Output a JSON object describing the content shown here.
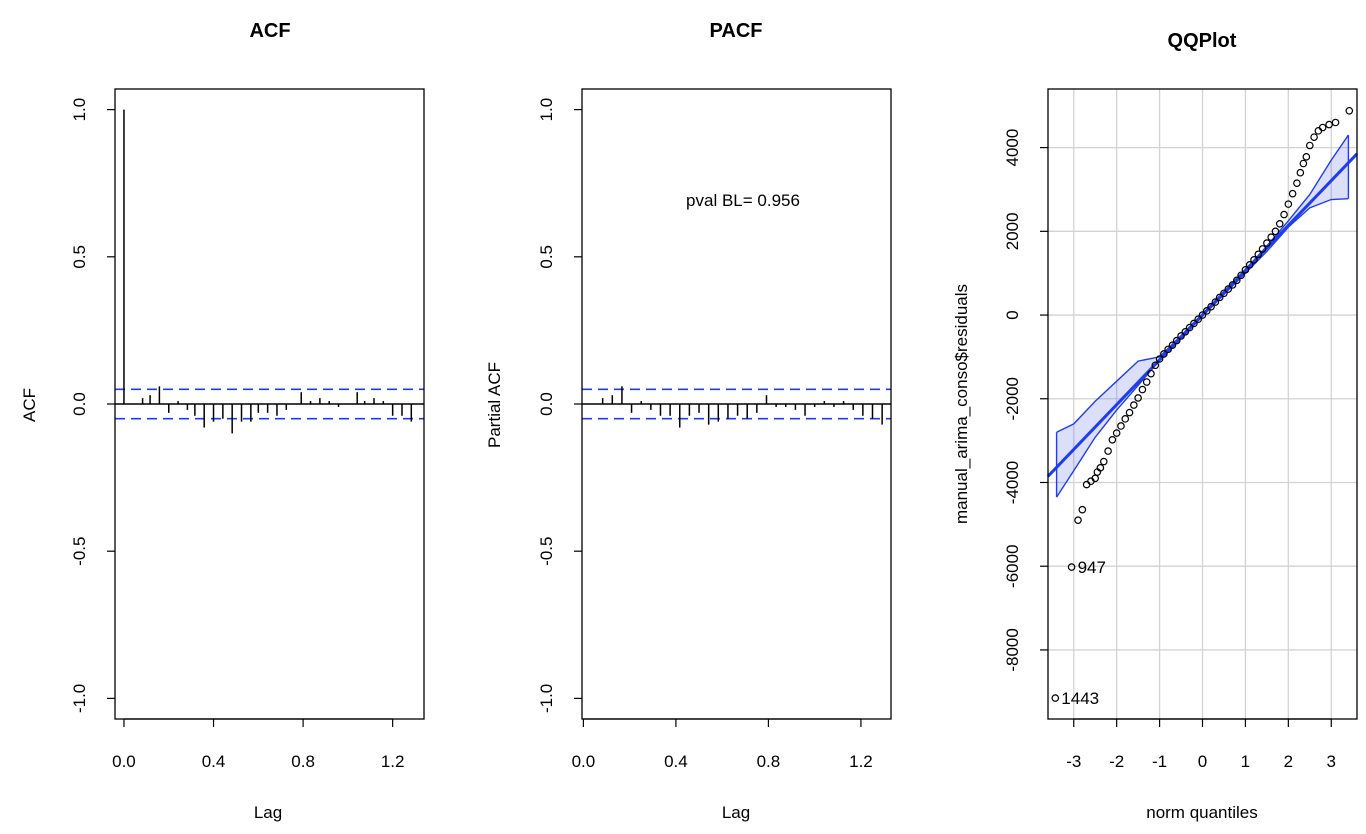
{
  "acf": {
    "chart_data": {
      "type": "bar",
      "title": "ACF",
      "xlabel": "Lag",
      "ylabel": "ACF",
      "xlim": [
        -0.04,
        1.34
      ],
      "ylim": [
        -1.07,
        1.07
      ],
      "x_ticks": [
        0.0,
        0.4,
        0.8,
        1.2
      ],
      "x_tick_labels": [
        "0.0",
        "0.4",
        "0.8",
        "1.2"
      ],
      "y_ticks": [
        1.0,
        0.5,
        0.0,
        -0.5,
        -1.0
      ],
      "y_tick_labels": [
        "1.0",
        "0.5",
        "0.0",
        "-0.5",
        "-1.0"
      ],
      "x": [
        0.0,
        0.0833,
        0.1167,
        0.1583,
        0.2,
        0.2417,
        0.2833,
        0.3167,
        0.3583,
        0.4,
        0.4417,
        0.4833,
        0.525,
        0.5667,
        0.6,
        0.6417,
        0.6833,
        0.725,
        0.7917,
        0.8333,
        0.875,
        0.9167,
        0.9583,
        1.0417,
        1.075,
        1.1167,
        1.1583,
        1.2,
        1.2417,
        1.2833
      ],
      "values": [
        1.0,
        0.02,
        0.03,
        0.06,
        -0.03,
        0.01,
        -0.02,
        -0.04,
        -0.08,
        -0.06,
        -0.05,
        -0.1,
        -0.06,
        -0.06,
        -0.03,
        -0.03,
        -0.04,
        -0.02,
        0.04,
        0.01,
        0.02,
        0.01,
        -0.01,
        0.04,
        0.01,
        0.02,
        0.01,
        -0.04,
        -0.04,
        -0.06
      ],
      "ci": [
        0.05,
        -0.05
      ]
    }
  },
  "pacf": {
    "chart_data": {
      "type": "bar",
      "title": "PACF",
      "xlabel": "Lag",
      "ylabel": "Partial ACF",
      "annotation": "pval BL= 0.956",
      "xlim": [
        -0.006,
        1.33
      ],
      "ylim": [
        -1.07,
        1.07
      ],
      "x_ticks": [
        0.0,
        0.4,
        0.8,
        1.2
      ],
      "x_tick_labels": [
        "0.0",
        "0.4",
        "0.8",
        "1.2"
      ],
      "y_ticks": [
        1.0,
        0.5,
        0.0,
        -0.5,
        -1.0
      ],
      "y_tick_labels": [
        "1.0",
        "0.5",
        "0.0",
        "-0.5",
        "-1.0"
      ],
      "x": [
        0.0833,
        0.125,
        0.1667,
        0.2083,
        0.25,
        0.2917,
        0.3333,
        0.375,
        0.4167,
        0.4583,
        0.5,
        0.5417,
        0.5833,
        0.625,
        0.6667,
        0.7083,
        0.75,
        0.7917,
        0.8333,
        0.875,
        0.9167,
        0.9583,
        1.0,
        1.0417,
        1.0833,
        1.125,
        1.1667,
        1.2083,
        1.25,
        1.2917
      ],
      "values": [
        0.02,
        0.03,
        0.06,
        -0.03,
        0.01,
        -0.02,
        -0.04,
        -0.04,
        -0.08,
        -0.04,
        -0.03,
        -0.07,
        -0.06,
        -0.05,
        -0.04,
        -0.05,
        -0.03,
        0.03,
        -0.01,
        -0.01,
        -0.02,
        -0.04,
        -0.01,
        0.01,
        -0.01,
        0.01,
        -0.02,
        -0.04,
        -0.05,
        -0.07
      ],
      "ci": [
        0.05,
        -0.05
      ]
    }
  },
  "qq": {
    "chart_data": {
      "type": "scatter",
      "title": "QQPlot",
      "xlabel": "norm quantiles",
      "ylabel": "manual_arima_conso$residuals",
      "xlim": [
        -3.6,
        3.6
      ],
      "ylim": [
        -9650,
        5400
      ],
      "x_ticks": [
        -3,
        -2,
        -1,
        0,
        1,
        2,
        3
      ],
      "x_tick_labels": [
        "-3",
        "-2",
        "-1",
        "0",
        "1",
        "2",
        "3"
      ],
      "y_ticks": [
        4000,
        2000,
        0,
        -2000,
        -4000,
        -6000,
        -8000
      ],
      "y_tick_labels": [
        "4000",
        "2000",
        "0",
        "-2000",
        "-4000",
        "-6000",
        "-8000"
      ],
      "ref_line": {
        "intercept": 0,
        "slope": 1070
      },
      "envelope": {
        "x": [
          -3.4,
          -3.0,
          -2.5,
          -2.0,
          -1.5,
          -1.0,
          -0.5,
          0.0,
          0.5,
          1.0,
          1.5,
          2.0,
          2.5,
          3.0,
          3.4
        ],
        "upper": [
          -2800,
          -2600,
          -2060,
          -1580,
          -1100,
          -1000,
          -490,
          30,
          560,
          1080,
          1650,
          2250,
          2880,
          3700,
          4300
        ],
        "lower": [
          -4350,
          -3720,
          -2920,
          -2270,
          -1680,
          -1080,
          -560,
          -30,
          490,
          1000,
          1520,
          2100,
          2560,
          2760,
          2780
        ]
      },
      "points": [
        [
          -3.43,
          -9150
        ],
        [
          -3.05,
          -6020
        ],
        [
          -2.9,
          -4900
        ],
        [
          -2.8,
          -4650
        ],
        [
          -2.7,
          -4050
        ],
        [
          -2.6,
          -3970
        ],
        [
          -2.5,
          -3900
        ],
        [
          -2.45,
          -3750
        ],
        [
          -2.38,
          -3650
        ],
        [
          -2.3,
          -3500
        ],
        [
          -2.2,
          -3250
        ],
        [
          -2.1,
          -2980
        ],
        [
          -2.0,
          -2820
        ],
        [
          -1.9,
          -2650
        ],
        [
          -1.8,
          -2480
        ],
        [
          -1.7,
          -2330
        ],
        [
          -1.6,
          -2150
        ],
        [
          -1.5,
          -1980
        ],
        [
          -1.4,
          -1780
        ],
        [
          -1.3,
          -1600
        ],
        [
          -1.2,
          -1400
        ],
        [
          -1.1,
          -1200
        ],
        [
          -1.0,
          -1050
        ],
        [
          -0.9,
          -930
        ],
        [
          -0.8,
          -820
        ],
        [
          -0.7,
          -720
        ],
        [
          -0.6,
          -610
        ],
        [
          -0.5,
          -500
        ],
        [
          -0.4,
          -400
        ],
        [
          -0.3,
          -300
        ],
        [
          -0.2,
          -200
        ],
        [
          -0.1,
          -100
        ],
        [
          0.0,
          0
        ],
        [
          0.1,
          100
        ],
        [
          0.2,
          200
        ],
        [
          0.3,
          310
        ],
        [
          0.4,
          420
        ],
        [
          0.5,
          520
        ],
        [
          0.6,
          620
        ],
        [
          0.7,
          720
        ],
        [
          0.8,
          830
        ],
        [
          0.9,
          950
        ],
        [
          1.0,
          1080
        ],
        [
          1.1,
          1200
        ],
        [
          1.2,
          1320
        ],
        [
          1.3,
          1450
        ],
        [
          1.4,
          1580
        ],
        [
          1.5,
          1720
        ],
        [
          1.6,
          1860
        ],
        [
          1.7,
          2000
        ],
        [
          1.8,
          2180
        ],
        [
          1.9,
          2400
        ],
        [
          2.0,
          2650
        ],
        [
          2.1,
          2900
        ],
        [
          2.2,
          3150
        ],
        [
          2.28,
          3400
        ],
        [
          2.35,
          3620
        ],
        [
          2.42,
          3780
        ],
        [
          2.5,
          4050
        ],
        [
          2.6,
          4250
        ],
        [
          2.7,
          4400
        ],
        [
          2.8,
          4480
        ],
        [
          2.95,
          4550
        ],
        [
          3.1,
          4600
        ],
        [
          3.42,
          4880
        ]
      ],
      "labels": [
        {
          "text": "947",
          "x": -3.05,
          "y": -6020
        },
        {
          "text": "1443",
          "x": -3.43,
          "y": -9150
        }
      ]
    }
  }
}
